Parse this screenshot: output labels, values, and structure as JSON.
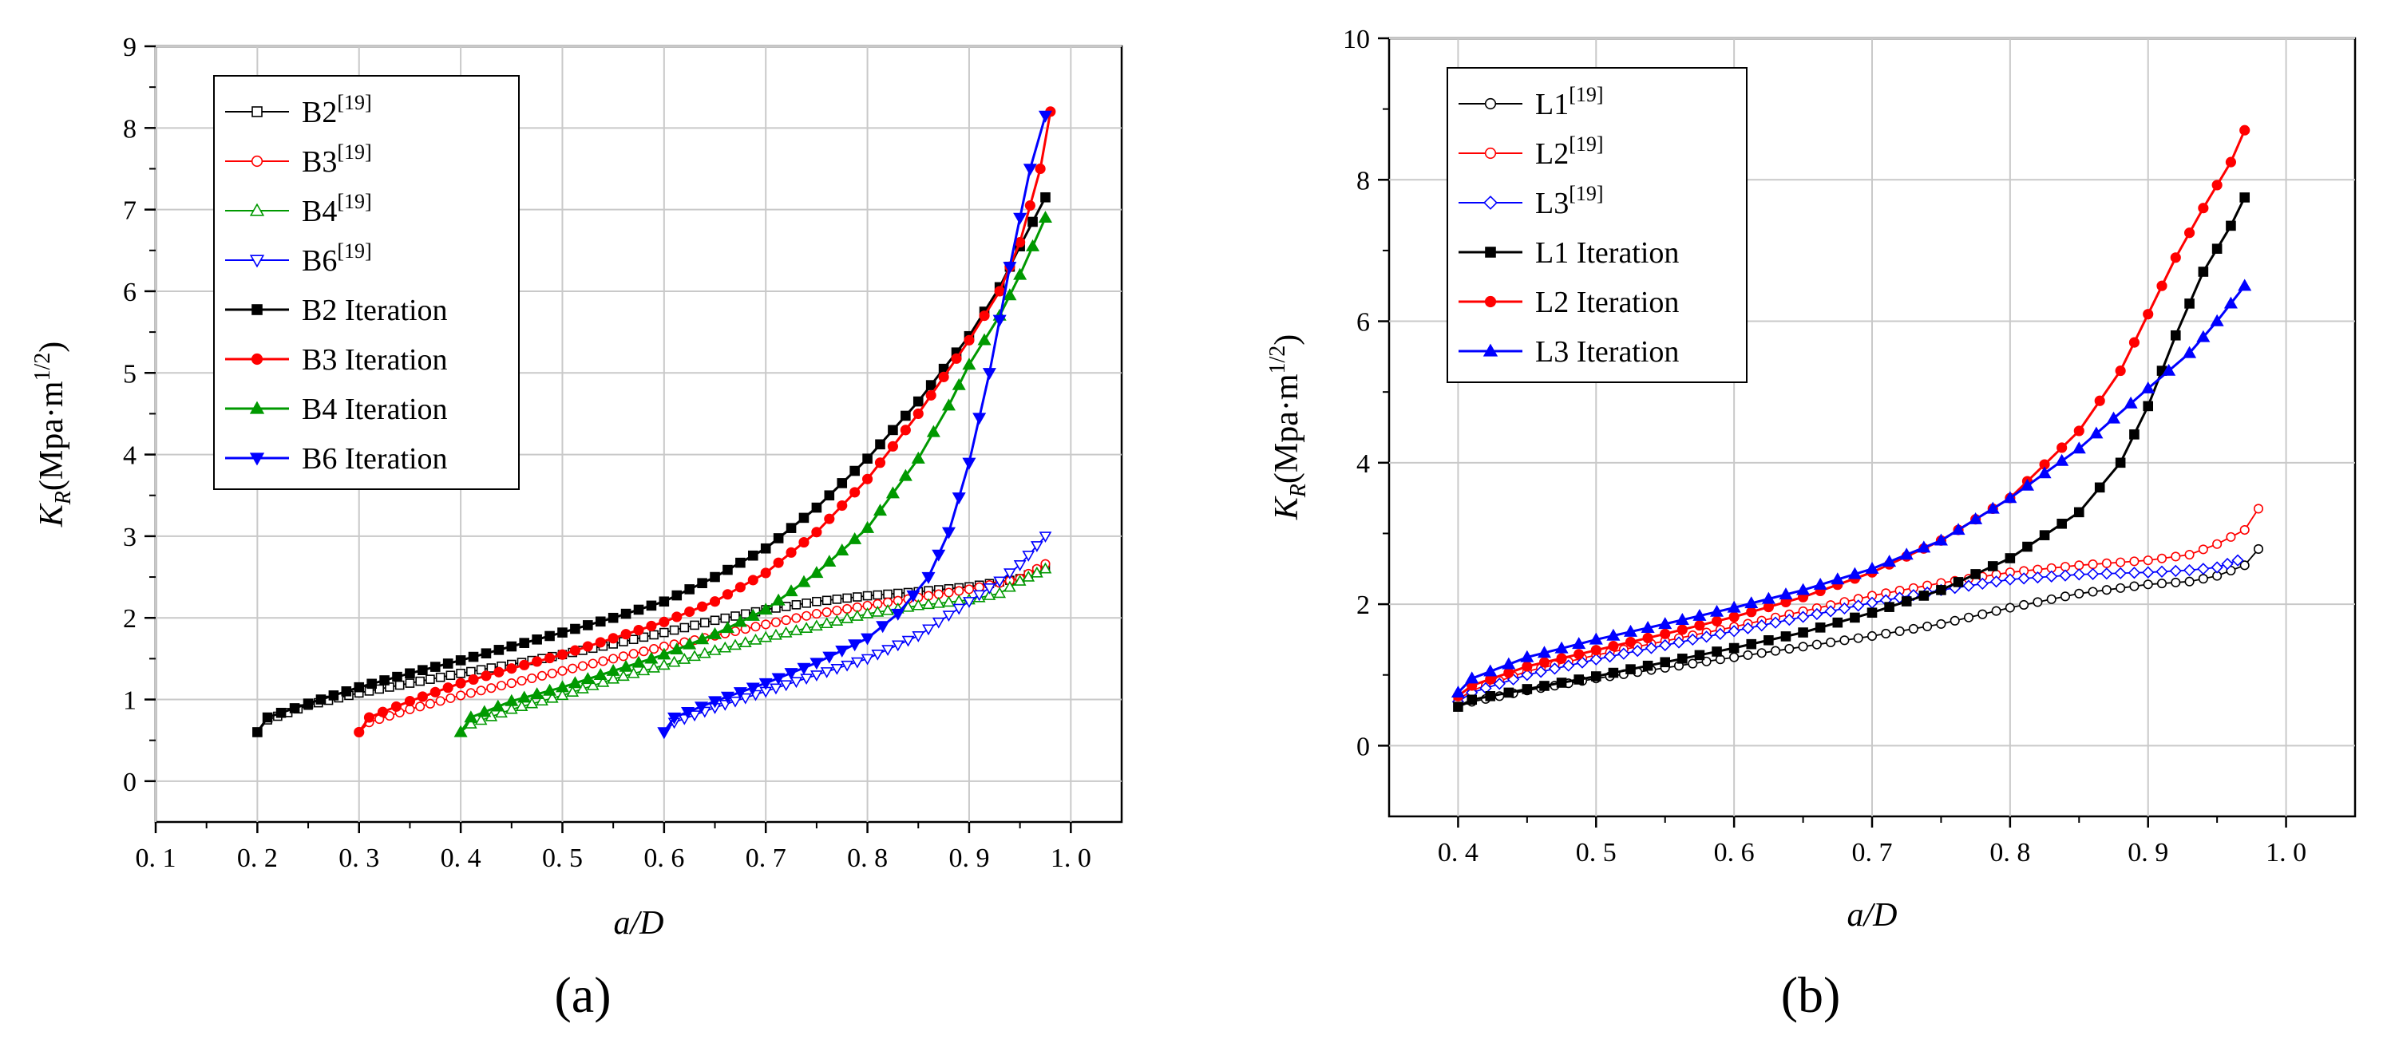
{
  "figure": {
    "panel_a_label": "(a)",
    "panel_b_label": "(b)"
  },
  "chart_data": [
    {
      "type": "line",
      "panel": "(a)",
      "xlabel": "a/D",
      "ylabel_main": "K",
      "ylabel_sub": "R",
      "ylabel_unit": "(Mpa·m",
      "ylabel_exp": "1/2",
      "ylabel_close": ")",
      "xlim": [
        0.1,
        1.05
      ],
      "ylim": [
        -0.5,
        9
      ],
      "x_ticks": [
        0.1,
        0.2,
        0.3,
        0.4,
        0.5,
        0.6,
        0.7,
        0.8,
        0.9,
        1.0
      ],
      "x_tick_labels": [
        "0. 1",
        "0. 2",
        "0. 3",
        "0. 4",
        "0. 5",
        "0. 6",
        "0. 7",
        "0. 8",
        "0. 9",
        "1. 0"
      ],
      "y_ticks": [
        0,
        1,
        2,
        3,
        4,
        5,
        6,
        7,
        8,
        9
      ],
      "y_tick_labels": [
        "0",
        "1",
        "2",
        "3",
        "4",
        "5",
        "6",
        "7",
        "8",
        "9"
      ],
      "grid": true,
      "legend_position": "top-left",
      "series": [
        {
          "name": "B2",
          "ref": "[19]",
          "style": "open",
          "marker": "square",
          "color": "#000000",
          "x": [
            0.2,
            0.21,
            0.25,
            0.3,
            0.35,
            0.4,
            0.45,
            0.5,
            0.55,
            0.6,
            0.65,
            0.7,
            0.75,
            0.8,
            0.85,
            0.9,
            0.95,
            0.975
          ],
          "y": [
            0.6,
            0.75,
            0.93,
            1.08,
            1.2,
            1.32,
            1.43,
            1.55,
            1.68,
            1.82,
            1.97,
            2.1,
            2.2,
            2.27,
            2.32,
            2.38,
            2.48,
            2.62
          ]
        },
        {
          "name": "B3",
          "ref": "[19]",
          "style": "open",
          "marker": "circle",
          "color": "#ff0000",
          "x": [
            0.3,
            0.31,
            0.35,
            0.4,
            0.45,
            0.5,
            0.55,
            0.6,
            0.65,
            0.7,
            0.75,
            0.8,
            0.85,
            0.9,
            0.95,
            0.975
          ],
          "y": [
            0.6,
            0.72,
            0.88,
            1.05,
            1.2,
            1.35,
            1.5,
            1.65,
            1.78,
            1.92,
            2.05,
            2.15,
            2.25,
            2.35,
            2.48,
            2.66
          ]
        },
        {
          "name": "B4",
          "ref": "[19]",
          "style": "open",
          "marker": "triangle-up",
          "color": "#009900",
          "x": [
            0.4,
            0.41,
            0.45,
            0.5,
            0.55,
            0.6,
            0.65,
            0.7,
            0.75,
            0.8,
            0.85,
            0.9,
            0.93,
            0.95,
            0.975
          ],
          "y": [
            0.6,
            0.7,
            0.88,
            1.05,
            1.25,
            1.42,
            1.6,
            1.76,
            1.9,
            2.05,
            2.15,
            2.22,
            2.3,
            2.45,
            2.6
          ]
        },
        {
          "name": "B6",
          "ref": "[19]",
          "style": "open",
          "marker": "triangle-down",
          "color": "#0000ff",
          "x": [
            0.6,
            0.61,
            0.65,
            0.7,
            0.75,
            0.8,
            0.85,
            0.9,
            0.93,
            0.95,
            0.975
          ],
          "y": [
            0.6,
            0.72,
            0.9,
            1.1,
            1.3,
            1.5,
            1.78,
            2.2,
            2.45,
            2.65,
            3.0
          ]
        },
        {
          "name": "B2 Iteration",
          "ref": "",
          "style": "filled",
          "marker": "square",
          "color": "#000000",
          "x": [
            0.2,
            0.21,
            0.25,
            0.3,
            0.35,
            0.4,
            0.45,
            0.5,
            0.55,
            0.6,
            0.65,
            0.7,
            0.75,
            0.8,
            0.85,
            0.9,
            0.93,
            0.95,
            0.975
          ],
          "y": [
            0.6,
            0.78,
            0.95,
            1.15,
            1.32,
            1.48,
            1.65,
            1.82,
            2.0,
            2.2,
            2.5,
            2.85,
            3.35,
            3.95,
            4.65,
            5.45,
            6.05,
            6.55,
            7.15
          ]
        },
        {
          "name": "B3 Iteration",
          "ref": "",
          "style": "filled",
          "marker": "circle",
          "color": "#ff0000",
          "x": [
            0.3,
            0.31,
            0.35,
            0.4,
            0.45,
            0.5,
            0.55,
            0.6,
            0.65,
            0.7,
            0.75,
            0.8,
            0.85,
            0.9,
            0.93,
            0.95,
            0.97,
            0.98
          ],
          "y": [
            0.6,
            0.78,
            0.98,
            1.2,
            1.38,
            1.55,
            1.75,
            1.95,
            2.2,
            2.55,
            3.05,
            3.7,
            4.5,
            5.4,
            6.0,
            6.6,
            7.5,
            8.2
          ]
        },
        {
          "name": "B4 Iteration",
          "ref": "",
          "style": "filled",
          "marker": "triangle-up",
          "color": "#009900",
          "x": [
            0.4,
            0.41,
            0.45,
            0.5,
            0.55,
            0.6,
            0.65,
            0.7,
            0.75,
            0.8,
            0.85,
            0.88,
            0.9,
            0.93,
            0.95,
            0.975
          ],
          "y": [
            0.6,
            0.78,
            0.98,
            1.15,
            1.35,
            1.55,
            1.8,
            2.1,
            2.55,
            3.1,
            3.95,
            4.6,
            5.1,
            5.7,
            6.2,
            6.9
          ]
        },
        {
          "name": "B6 Iteration",
          "ref": "",
          "style": "filled",
          "marker": "triangle-down",
          "color": "#0000ff",
          "x": [
            0.6,
            0.61,
            0.65,
            0.7,
            0.75,
            0.8,
            0.83,
            0.86,
            0.88,
            0.9,
            0.92,
            0.94,
            0.96,
            0.975
          ],
          "y": [
            0.6,
            0.78,
            0.98,
            1.2,
            1.45,
            1.75,
            2.05,
            2.5,
            3.05,
            3.9,
            5.0,
            6.3,
            7.5,
            8.15
          ]
        }
      ]
    },
    {
      "type": "line",
      "panel": "(b)",
      "xlabel": "a/D",
      "ylabel_main": "K",
      "ylabel_sub": "R",
      "ylabel_unit": "(Mpa·m",
      "ylabel_exp": "1/2",
      "ylabel_close": ")",
      "xlim": [
        0.35,
        1.05
      ],
      "ylim": [
        -1,
        10
      ],
      "x_ticks": [
        0.4,
        0.5,
        0.6,
        0.7,
        0.8,
        0.9,
        1.0
      ],
      "x_tick_labels": [
        "0. 4",
        "0. 5",
        "0. 6",
        "0. 7",
        "0. 8",
        "0. 9",
        "1. 0"
      ],
      "y_ticks": [
        0,
        2,
        4,
        6,
        8,
        10
      ],
      "y_tick_labels": [
        "0",
        "2",
        "4",
        "6",
        "8",
        "10"
      ],
      "grid": true,
      "legend_position": "top-left",
      "series": [
        {
          "name": "L1",
          "ref": "[19]",
          "style": "open",
          "marker": "circle",
          "color": "#000000",
          "x": [
            0.4,
            0.41,
            0.45,
            0.5,
            0.55,
            0.6,
            0.65,
            0.7,
            0.75,
            0.8,
            0.85,
            0.9,
            0.93,
            0.95,
            0.97,
            0.98
          ],
          "y": [
            0.55,
            0.62,
            0.78,
            0.95,
            1.1,
            1.25,
            1.4,
            1.55,
            1.72,
            1.95,
            2.15,
            2.28,
            2.32,
            2.4,
            2.55,
            2.78
          ]
        },
        {
          "name": "L2",
          "ref": "[19]",
          "style": "open",
          "marker": "circle",
          "color": "#ff0000",
          "x": [
            0.4,
            0.41,
            0.45,
            0.5,
            0.55,
            0.6,
            0.65,
            0.7,
            0.75,
            0.8,
            0.85,
            0.9,
            0.93,
            0.95,
            0.97,
            0.98
          ],
          "y": [
            0.65,
            0.78,
            1.05,
            1.28,
            1.48,
            1.68,
            1.9,
            2.12,
            2.3,
            2.45,
            2.55,
            2.62,
            2.7,
            2.85,
            3.05,
            3.35
          ]
        },
        {
          "name": "L3",
          "ref": "[19]",
          "style": "open",
          "marker": "diamond",
          "color": "#0000ff",
          "x": [
            0.4,
            0.41,
            0.45,
            0.5,
            0.55,
            0.6,
            0.65,
            0.7,
            0.75,
            0.8,
            0.85,
            0.9,
            0.93,
            0.95,
            0.965
          ],
          "y": [
            0.62,
            0.75,
            1.0,
            1.22,
            1.42,
            1.62,
            1.82,
            2.02,
            2.2,
            2.35,
            2.42,
            2.45,
            2.48,
            2.52,
            2.62
          ]
        },
        {
          "name": "L1 Iteration",
          "ref": "",
          "style": "filled",
          "marker": "square",
          "color": "#000000",
          "x": [
            0.4,
            0.41,
            0.45,
            0.5,
            0.55,
            0.6,
            0.65,
            0.7,
            0.75,
            0.8,
            0.85,
            0.88,
            0.9,
            0.92,
            0.94,
            0.96,
            0.97
          ],
          "y": [
            0.55,
            0.65,
            0.8,
            0.98,
            1.18,
            1.38,
            1.6,
            1.88,
            2.2,
            2.65,
            3.3,
            4.0,
            4.8,
            5.8,
            6.7,
            7.35,
            7.75
          ]
        },
        {
          "name": "L2 Iteration",
          "ref": "",
          "style": "filled",
          "marker": "circle",
          "color": "#ff0000",
          "x": [
            0.4,
            0.41,
            0.45,
            0.5,
            0.55,
            0.6,
            0.65,
            0.7,
            0.75,
            0.8,
            0.85,
            0.88,
            0.9,
            0.92,
            0.94,
            0.96,
            0.97
          ],
          "y": [
            0.7,
            0.85,
            1.12,
            1.35,
            1.58,
            1.82,
            2.1,
            2.45,
            2.9,
            3.5,
            4.45,
            5.3,
            6.1,
            6.9,
            7.6,
            8.25,
            8.7
          ]
        },
        {
          "name": "L3 Iteration",
          "ref": "",
          "style": "filled",
          "marker": "triangle-up",
          "color": "#0000ff",
          "x": [
            0.4,
            0.41,
            0.45,
            0.5,
            0.55,
            0.6,
            0.65,
            0.7,
            0.75,
            0.8,
            0.85,
            0.9,
            0.93,
            0.95,
            0.97
          ],
          "y": [
            0.75,
            0.95,
            1.25,
            1.5,
            1.72,
            1.95,
            2.2,
            2.5,
            2.9,
            3.5,
            4.2,
            5.05,
            5.55,
            6.0,
            6.5
          ]
        }
      ]
    }
  ]
}
